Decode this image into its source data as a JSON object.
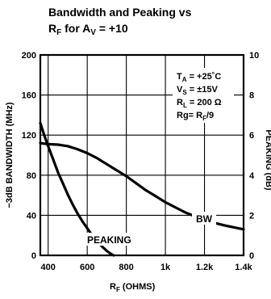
{
  "chart_data": {
    "type": "line",
    "title_line1": "Bandwidth and Peaking vs",
    "title_line2": {
      "r": "R",
      "sub_f": "F",
      "mid": " for A",
      "sub_v": "V",
      "end": " = +10"
    },
    "xlabel": {
      "r": "R",
      "sub_f": "F",
      "rest": " (OHMS)"
    },
    "ylabel_left": "−3dB BANDWIDTH (MHz)",
    "ylabel_right": "PEAKING (dB)",
    "xlim": [
      360,
      1400
    ],
    "ylim_left": [
      0,
      200
    ],
    "ylim_right": [
      0,
      10
    ],
    "x_ticks": [
      {
        "v": 400,
        "label": "400"
      },
      {
        "v": 600,
        "label": "600"
      },
      {
        "v": 800,
        "label": "800"
      },
      {
        "v": 1000,
        "label": "1k"
      },
      {
        "v": 1200,
        "label": "1.2k"
      },
      {
        "v": 1400,
        "label": "1.4k"
      }
    ],
    "y_left_ticks": [
      {
        "v": 0,
        "label": "0"
      },
      {
        "v": 40,
        "label": "40"
      },
      {
        "v": 80,
        "label": "80"
      },
      {
        "v": 120,
        "label": "120"
      },
      {
        "v": 160,
        "label": "160"
      },
      {
        "v": 200,
        "label": "200"
      }
    ],
    "y_right_ticks": [
      {
        "v": 0,
        "label": "0"
      },
      {
        "v": 2,
        "label": "2"
      },
      {
        "v": 4,
        "label": "4"
      },
      {
        "v": 6,
        "label": "6"
      },
      {
        "v": 8,
        "label": "8"
      },
      {
        "v": 10,
        "label": "10"
      }
    ],
    "grid": true,
    "conditions": [
      {
        "a": "T",
        "sub": "A",
        "b": " = +25˚C"
      },
      {
        "a": "V",
        "sub": "S",
        "b": " = ±15V"
      },
      {
        "a": "R",
        "sub": "L",
        "b": " = 200 Ω"
      },
      {
        "a": "Rg= R",
        "sub": "F",
        "b": "/9"
      }
    ],
    "series": [
      {
        "name": "BW",
        "axis": "left",
        "points": [
          [
            360,
            112
          ],
          [
            400,
            111
          ],
          [
            450,
            110.5
          ],
          [
            500,
            109
          ],
          [
            550,
            106
          ],
          [
            600,
            102
          ],
          [
            650,
            97
          ],
          [
            700,
            91
          ],
          [
            750,
            85
          ],
          [
            800,
            79
          ],
          [
            850,
            72
          ],
          [
            900,
            65
          ],
          [
            950,
            59
          ],
          [
            1000,
            53
          ],
          [
            1050,
            48
          ],
          [
            1100,
            43
          ],
          [
            1150,
            39
          ],
          [
            1200,
            35.5
          ],
          [
            1250,
            32.5
          ],
          [
            1300,
            30
          ],
          [
            1350,
            28
          ],
          [
            1400,
            26
          ]
        ]
      },
      {
        "name": "PEAKING",
        "axis": "right",
        "points": [
          [
            360,
            6.6
          ],
          [
            380,
            6.0
          ],
          [
            400,
            5.45
          ],
          [
            425,
            4.8
          ],
          [
            450,
            4.15
          ],
          [
            475,
            3.6
          ],
          [
            500,
            3.05
          ],
          [
            525,
            2.55
          ],
          [
            550,
            2.1
          ],
          [
            575,
            1.7
          ],
          [
            600,
            1.35
          ],
          [
            625,
            1.0
          ],
          [
            650,
            0.7
          ],
          [
            675,
            0.45
          ],
          [
            700,
            0.22
          ],
          [
            720,
            0.08
          ],
          [
            735,
            0.0
          ]
        ]
      }
    ]
  }
}
